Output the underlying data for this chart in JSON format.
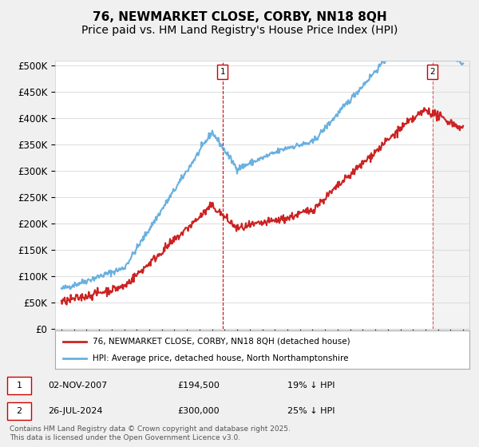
{
  "title": "76, NEWMARKET CLOSE, CORBY, NN18 8QH",
  "subtitle": "Price paid vs. HM Land Registry's House Price Index (HPI)",
  "ylim": [
    0,
    510000
  ],
  "yticks": [
    0,
    50000,
    100000,
    150000,
    200000,
    250000,
    300000,
    350000,
    400000,
    450000,
    500000
  ],
  "ytick_labels": [
    "£0",
    "£50K",
    "£100K",
    "£150K",
    "£200K",
    "£250K",
    "£300K",
    "£350K",
    "£400K",
    "£450K",
    "£500K"
  ],
  "background_color": "#f0f0f0",
  "plot_bg_color": "#ffffff",
  "grid_color": "#e0e0e0",
  "hpi_color": "#6ab0e0",
  "price_color": "#cc2222",
  "sale1_date": "02-NOV-2007",
  "sale1_price": "£194,500",
  "sale1_note": "19% ↓ HPI",
  "sale2_date": "26-JUL-2024",
  "sale2_price": "£300,000",
  "sale2_note": "25% ↓ HPI",
  "legend_line1": "76, NEWMARKET CLOSE, CORBY, NN18 8QH (detached house)",
  "legend_line2": "HPI: Average price, detached house, North Northamptonshire",
  "footer": "Contains HM Land Registry data © Crown copyright and database right 2025.\nThis data is licensed under the Open Government Licence v3.0.",
  "title_fontsize": 11,
  "subtitle_fontsize": 10,
  "tick_fontsize": 8.5
}
